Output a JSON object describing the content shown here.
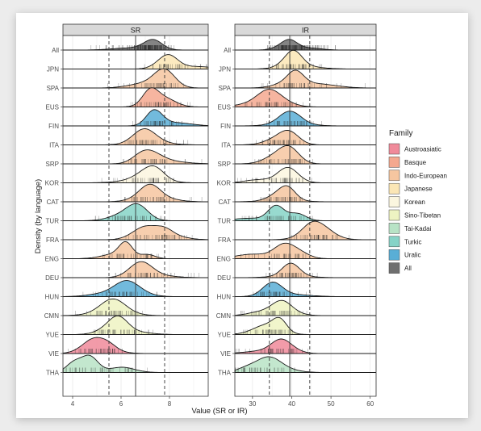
{
  "chart_data": {
    "type": "ridgeline-density",
    "ylabel": "Density (by language)",
    "xlabel": "Value (SR or IR)",
    "languages": [
      "All",
      "JPN",
      "SPA",
      "EUS",
      "FIN",
      "ITA",
      "SRP",
      "KOR",
      "CAT",
      "TUR",
      "FRA",
      "ENG",
      "DEU",
      "HUN",
      "CMN",
      "YUE",
      "VIE",
      "THA"
    ],
    "language_family": {
      "All": "All",
      "JPN": "Japanese",
      "SPA": "Indo-European",
      "EUS": "Basque",
      "FIN": "Uralic",
      "ITA": "Indo-European",
      "SRP": "Indo-European",
      "KOR": "Korean",
      "CAT": "Indo-European",
      "TUR": "Turkic",
      "FRA": "Indo-European",
      "ENG": "Indo-European",
      "DEU": "Indo-European",
      "HUN": "Uralic",
      "CMN": "Sino-Tibetan",
      "YUE": "Sino-Tibetan",
      "VIE": "Austroasiatic",
      "THA": "Tai-Kadai"
    },
    "legend": {
      "title": "Family",
      "position": "right",
      "items": [
        {
          "name": "Austroasiatic",
          "color": "#f08a9a"
        },
        {
          "name": "Basque",
          "color": "#f4a88f"
        },
        {
          "name": "Indo-European",
          "color": "#f6c6a0"
        },
        {
          "name": "Japanese",
          "color": "#fbe6b5"
        },
        {
          "name": "Korean",
          "color": "#fbf6df"
        },
        {
          "name": "Sino-Tibetan",
          "color": "#eef3c2"
        },
        {
          "name": "Tai-Kadai",
          "color": "#b8e3c6"
        },
        {
          "name": "Turkic",
          "color": "#86d3c7"
        },
        {
          "name": "Uralic",
          "color": "#59aed6"
        },
        {
          "name": "All",
          "color": "#6f6f6f"
        }
      ]
    },
    "panels": [
      {
        "title": "SR",
        "xlim": [
          3.6,
          9.6
        ],
        "xticks": [
          4,
          6,
          8
        ],
        "mean_line": 6.6,
        "sd_lines": [
          5.5,
          7.8
        ],
        "peaks": {
          "All": 7.3,
          "JPN": 7.9,
          "SPA": 7.8,
          "EUS": 7.2,
          "FIN": 7.3,
          "ITA": 7.0,
          "SRP": 7.2,
          "KOR": 7.2,
          "CAT": 7.2,
          "TUR": 6.7,
          "FRA": 7.0,
          "ENG": 6.2,
          "DEU": 6.8,
          "HUN": 6.2,
          "CMN": 5.6,
          "YUE": 5.9,
          "VIE": 4.9,
          "THA": 4.7
        }
      },
      {
        "title": "IR",
        "xlim": [
          25.5,
          61.5
        ],
        "xticks": [
          30,
          40,
          50,
          60
        ],
        "mean_line": 39.5,
        "sd_lines": [
          34.3,
          44.6
        ],
        "peaks": {
          "All": 39.5,
          "JPN": 40.5,
          "SPA": 41,
          "EUS": 34,
          "FIN": 39.5,
          "ITA": 39.5,
          "SRP": 39.5,
          "KOR": 39,
          "CAT": 39,
          "TUR": 36,
          "FRA": 45,
          "ENG": 38,
          "DEU": 40,
          "HUN": 35,
          "CMN": 37.5,
          "YUE": 37,
          "VIE": 37,
          "THA": 34
        }
      }
    ]
  }
}
